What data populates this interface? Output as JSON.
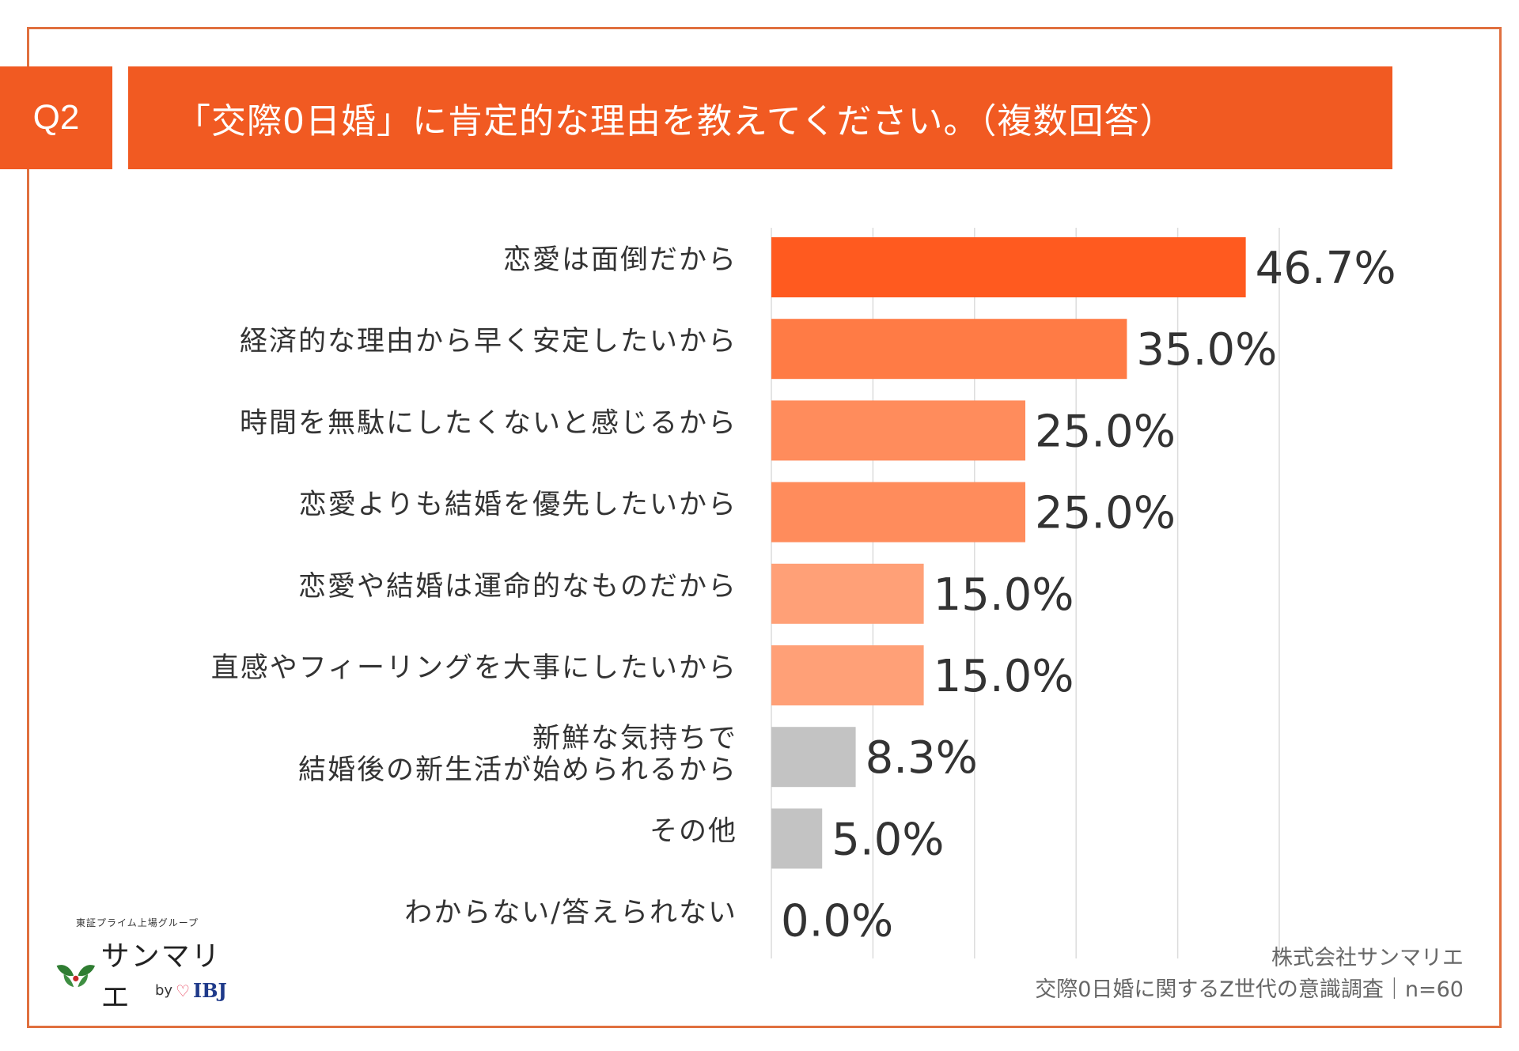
{
  "header": {
    "badge": "Q2",
    "title": "「交際0日婚」に肯定的な理由を教えてください。（複数回答）"
  },
  "chart_data": {
    "type": "bar",
    "orientation": "horizontal",
    "categories": [
      [
        "恋愛は面倒だから"
      ],
      [
        "経済的な理由から早く安定したいから"
      ],
      [
        "時間を無駄にしたくないと感じるから"
      ],
      [
        "恋愛よりも結婚を優先したいから"
      ],
      [
        "恋愛や結婚は運命的なものだから"
      ],
      [
        "直感やフィーリングを大事にしたいから"
      ],
      [
        "新鮮な気持ちで",
        "結婚後の新生活が始められるから"
      ],
      [
        "その他"
      ],
      [
        "わからない/答えられない"
      ]
    ],
    "values": [
      46.7,
      35.0,
      25.0,
      25.0,
      15.0,
      15.0,
      8.3,
      5.0,
      0.0
    ],
    "value_labels": [
      "46.7%",
      "35.0%",
      "25.0%",
      "25.0%",
      "15.0%",
      "15.0%",
      "8.3%",
      "5.0%",
      "0.0%"
    ],
    "bar_colors": [
      "#ff5a1f",
      "#ff7b45",
      "#ff8c5c",
      "#ff8c5c",
      "#ffa077",
      "#ffa077",
      "#c3c3c3",
      "#c3c3c3",
      "#c3c3c3"
    ],
    "xlim": [
      0,
      50
    ],
    "grid": true
  },
  "logo": {
    "tagline": "東証プライム上場グループ",
    "name": "サンマリエ",
    "by": "by",
    "partner": "IBJ"
  },
  "source": {
    "company": "株式会社サンマリエ",
    "survey": "交際0日婚に関するZ世代の意識調査｜n=60"
  }
}
